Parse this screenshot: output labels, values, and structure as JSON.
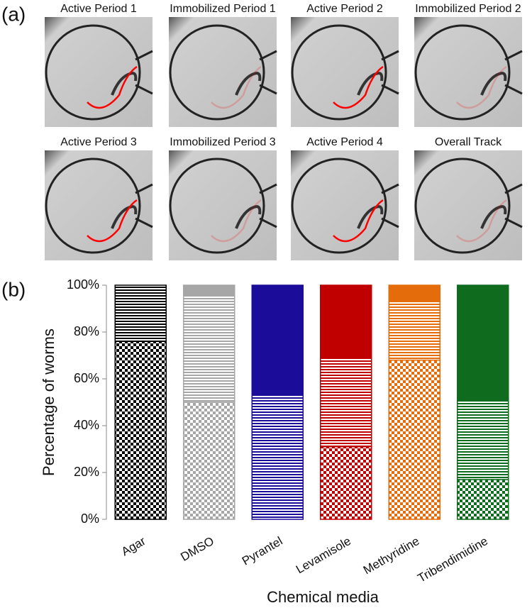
{
  "panel_a": {
    "label": "(a)",
    "captions": [
      "Active Period 1",
      "Immobilized Period 1",
      "Active Period 2",
      "Immobilized Period 2",
      "Active Period 3",
      "Immobilized Period 3",
      "Active Period 4",
      "Overall Track"
    ]
  },
  "panel_b": {
    "label": "(b)"
  },
  "chart_data": {
    "type": "stacked-bar",
    "y_label": "Percentage of worms",
    "x_label": "Chemical media",
    "categories": [
      "Agar",
      "DMSO",
      "Pyrantel",
      "Levamisole",
      "Methyridine",
      "Tribendimidine"
    ],
    "colors": [
      "#000000",
      "#a6a6a6",
      "#1c0c9a",
      "#c00000",
      "#e46c0a",
      "#0f6b1e"
    ],
    "series": [
      {
        "pattern": "checker",
        "values": [
          76,
          50,
          0,
          31,
          68,
          17
        ]
      },
      {
        "pattern": "stripes",
        "values": [
          24,
          46,
          53,
          38,
          25,
          34
        ]
      },
      {
        "pattern": "solid",
        "values": [
          0,
          4,
          47,
          31,
          7,
          49
        ]
      }
    ],
    "ylim": [
      0,
      100
    ],
    "yticks": [
      {
        "value": 0,
        "label": "0%"
      },
      {
        "value": 20,
        "label": "20%"
      },
      {
        "value": 40,
        "label": "40%"
      },
      {
        "value": 60,
        "label": "60%"
      },
      {
        "value": 80,
        "label": "80%"
      },
      {
        "value": 100,
        "label": "100%"
      }
    ]
  }
}
